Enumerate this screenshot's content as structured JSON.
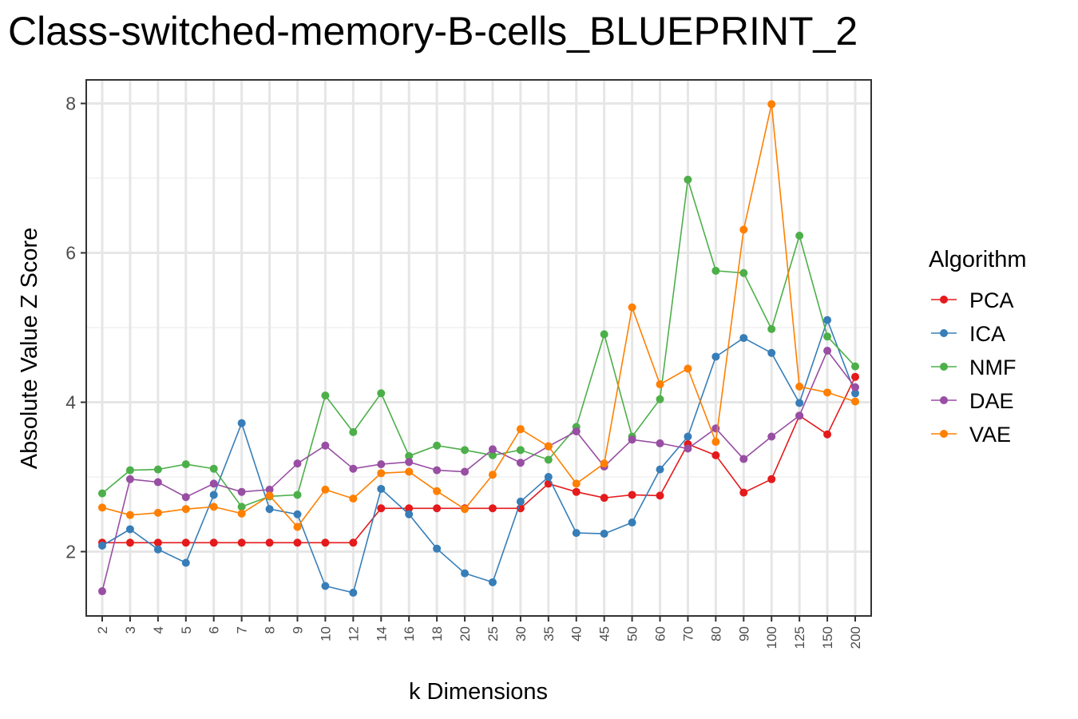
{
  "chart_data": {
    "type": "line",
    "title": "Class-switched-memory-B-cells_BLUEPRINT_2",
    "xlabel": "k Dimensions",
    "ylabel": "Absolute Value Z Score",
    "categories": [
      "2",
      "3",
      "4",
      "5",
      "6",
      "7",
      "8",
      "9",
      "10",
      "12",
      "14",
      "16",
      "18",
      "20",
      "25",
      "30",
      "35",
      "40",
      "45",
      "50",
      "60",
      "70",
      "80",
      "90",
      "100",
      "125",
      "150",
      "200"
    ],
    "ylim": [
      1.2,
      8.3
    ],
    "yticks": [
      2,
      4,
      6,
      8
    ],
    "grid": true,
    "legend": {
      "title": "Algorithm",
      "placement": "right"
    },
    "series": [
      {
        "name": "PCA",
        "color": "#e41a1c",
        "values": [
          2.12,
          2.12,
          2.12,
          2.12,
          2.12,
          2.12,
          2.12,
          2.12,
          2.12,
          2.12,
          2.58,
          2.58,
          2.58,
          2.58,
          2.58,
          2.58,
          2.91,
          2.8,
          2.72,
          2.76,
          2.75,
          3.44,
          3.29,
          2.79,
          2.97,
          3.82,
          3.57,
          4.34
        ]
      },
      {
        "name": "ICA",
        "color": "#377eb8",
        "values": [
          2.08,
          2.3,
          2.03,
          1.85,
          2.76,
          3.72,
          2.57,
          2.5,
          1.54,
          1.45,
          2.84,
          2.5,
          2.04,
          1.71,
          1.59,
          2.67,
          3.0,
          2.25,
          2.24,
          2.39,
          3.1,
          3.54,
          4.61,
          4.86,
          4.66,
          3.99,
          5.1,
          4.12
        ]
      },
      {
        "name": "NMF",
        "color": "#4daf4a",
        "values": [
          2.78,
          3.09,
          3.1,
          3.17,
          3.11,
          2.6,
          2.74,
          2.76,
          4.09,
          3.6,
          4.12,
          3.28,
          3.42,
          3.36,
          3.29,
          3.36,
          3.23,
          3.67,
          4.91,
          3.54,
          4.04,
          6.98,
          5.76,
          5.73,
          4.98,
          6.23,
          4.88,
          4.48
        ]
      },
      {
        "name": "DAE",
        "color": "#984ea3",
        "values": [
          1.47,
          2.97,
          2.93,
          2.73,
          2.91,
          2.8,
          2.83,
          3.18,
          3.42,
          3.11,
          3.17,
          3.2,
          3.09,
          3.07,
          3.37,
          3.19,
          3.41,
          3.61,
          3.14,
          3.5,
          3.45,
          3.38,
          3.65,
          3.24,
          3.54,
          3.82,
          4.69,
          4.2
        ]
      },
      {
        "name": "VAE",
        "color": "#ff7f00",
        "values": [
          2.59,
          2.49,
          2.52,
          2.57,
          2.6,
          2.51,
          2.75,
          2.33,
          2.83,
          2.71,
          3.05,
          3.07,
          2.81,
          2.57,
          3.03,
          3.64,
          3.41,
          2.91,
          3.18,
          5.27,
          4.24,
          4.45,
          3.47,
          6.31,
          7.99,
          4.21,
          4.13,
          4.01
        ]
      }
    ]
  }
}
